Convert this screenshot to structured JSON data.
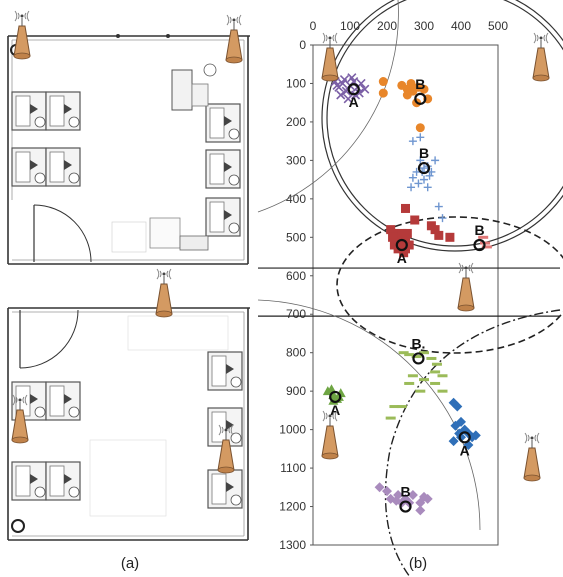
{
  "captions": {
    "left": "(a)",
    "right": "(b)"
  },
  "chart_data": {
    "type": "scatter",
    "x_ticks": [
      "0",
      "100",
      "200",
      "300",
      "400",
      "500"
    ],
    "y_ticks": [
      "0",
      "100",
      "200",
      "300",
      "400",
      "500",
      "600",
      "700",
      "800",
      "900",
      "1000",
      "1100",
      "1200",
      "1300"
    ],
    "xlim": [
      0,
      500
    ],
    "ylim": [
      0,
      1300
    ],
    "y_inverted": true,
    "grid": false,
    "horizontal_lines_y": [
      580,
      705
    ],
    "point_labels": [
      {
        "text": "A",
        "x": 110,
        "y": 115
      },
      {
        "text": "B",
        "x": 290,
        "y": 140
      },
      {
        "text": "B",
        "x": 300,
        "y": 320
      },
      {
        "text": "A",
        "x": 240,
        "y": 520
      },
      {
        "text": "B",
        "x": 450,
        "y": 520
      },
      {
        "text": "B.",
        "x": 285,
        "y": 815
      },
      {
        "text": "A",
        "x": 60,
        "y": 915
      },
      {
        "text": "A",
        "x": 410,
        "y": 1020
      },
      {
        "text": "B",
        "x": 250,
        "y": 1200
      }
    ],
    "series": [
      {
        "color": "#7b5fa6",
        "marker": "x",
        "points": [
          [
            60,
            95
          ],
          [
            70,
            110
          ],
          [
            80,
            100
          ],
          [
            90,
            120
          ],
          [
            100,
            105
          ],
          [
            110,
            95
          ],
          [
            120,
            110
          ],
          [
            130,
            100
          ],
          [
            75,
            130
          ],
          [
            95,
            140
          ],
          [
            140,
            115
          ],
          [
            85,
            90
          ],
          [
            65,
            105
          ],
          [
            115,
            130
          ],
          [
            105,
            85
          ],
          [
            125,
            125
          ]
        ]
      },
      {
        "color": "#e8862a",
        "marker": "circle",
        "points": [
          [
            190,
            95
          ],
          [
            190,
            125
          ],
          [
            240,
            105
          ],
          [
            255,
            115
          ],
          [
            265,
            100
          ],
          [
            270,
            120
          ],
          [
            285,
            110
          ],
          [
            300,
            115
          ],
          [
            255,
            130
          ],
          [
            310,
            140
          ],
          [
            280,
            150
          ],
          [
            290,
            215
          ]
        ]
      },
      {
        "color": "#6f96d0",
        "marker": "plus",
        "points": [
          [
            270,
            250
          ],
          [
            290,
            300
          ],
          [
            300,
            320
          ],
          [
            310,
            315
          ],
          [
            280,
            330
          ],
          [
            270,
            345
          ],
          [
            285,
            360
          ],
          [
            300,
            350
          ],
          [
            315,
            340
          ],
          [
            320,
            330
          ],
          [
            330,
            300
          ],
          [
            290,
            240
          ],
          [
            340,
            420
          ],
          [
            350,
            450
          ],
          [
            310,
            370
          ],
          [
            265,
            370
          ],
          [
            295,
            330
          ]
        ]
      },
      {
        "color": "#b53a3a",
        "marker": "square",
        "points": [
          [
            210,
            480
          ],
          [
            220,
            490
          ],
          [
            230,
            500
          ],
          [
            240,
            510
          ],
          [
            250,
            500
          ],
          [
            260,
            520
          ],
          [
            230,
            530
          ],
          [
            220,
            520
          ],
          [
            245,
            540
          ],
          [
            255,
            490
          ],
          [
            225,
            510
          ],
          [
            215,
            500
          ],
          [
            240,
            490
          ],
          [
            250,
            530
          ],
          [
            235,
            520
          ],
          [
            275,
            455
          ],
          [
            250,
            425
          ],
          [
            320,
            470
          ],
          [
            330,
            480
          ],
          [
            340,
            495
          ],
          [
            370,
            500
          ]
        ]
      },
      {
        "color": "#e07878",
        "marker": "dash",
        "points": [
          [
            460,
            500
          ],
          [
            465,
            515
          ],
          [
            470,
            525
          ]
        ]
      },
      {
        "color": "#9bbb59",
        "marker": "dash",
        "points": [
          [
            245,
            800
          ],
          [
            260,
            805
          ],
          [
            280,
            810
          ],
          [
            300,
            800
          ],
          [
            320,
            815
          ],
          [
            330,
            850
          ],
          [
            270,
            860
          ],
          [
            300,
            870
          ],
          [
            330,
            880
          ],
          [
            350,
            900
          ],
          [
            290,
            900
          ],
          [
            260,
            880
          ],
          [
            210,
            970
          ],
          [
            220,
            940
          ],
          [
            240,
            940
          ],
          [
            335,
            830
          ],
          [
            350,
            860
          ]
        ]
      },
      {
        "color": "#6ea543",
        "marker": "triangle",
        "points": [
          [
            40,
            900
          ],
          [
            55,
            910
          ],
          [
            65,
            920
          ],
          [
            75,
            905
          ],
          [
            55,
            925
          ],
          [
            50,
            895
          ],
          [
            70,
            915
          ]
        ]
      },
      {
        "color": "#2f6fb8",
        "marker": "diamond",
        "points": [
          [
            380,
            930
          ],
          [
            390,
            940
          ],
          [
            400,
            980
          ],
          [
            410,
            1000
          ],
          [
            420,
            1010
          ],
          [
            430,
            1020
          ],
          [
            420,
            1040
          ],
          [
            400,
            1020
          ],
          [
            395,
            1010
          ],
          [
            440,
            1015
          ],
          [
            385,
            990
          ],
          [
            380,
            1030
          ]
        ]
      },
      {
        "color": "#a98bbd",
        "marker": "diamond",
        "points": [
          [
            180,
            1150
          ],
          [
            200,
            1160
          ],
          [
            210,
            1180
          ],
          [
            230,
            1170
          ],
          [
            250,
            1180
          ],
          [
            270,
            1170
          ],
          [
            290,
            1190
          ],
          [
            290,
            1210
          ],
          [
            300,
            1175
          ],
          [
            310,
            1180
          ],
          [
            260,
            1190
          ],
          [
            240,
            1190
          ],
          [
            225,
            1185
          ]
        ]
      }
    ]
  }
}
